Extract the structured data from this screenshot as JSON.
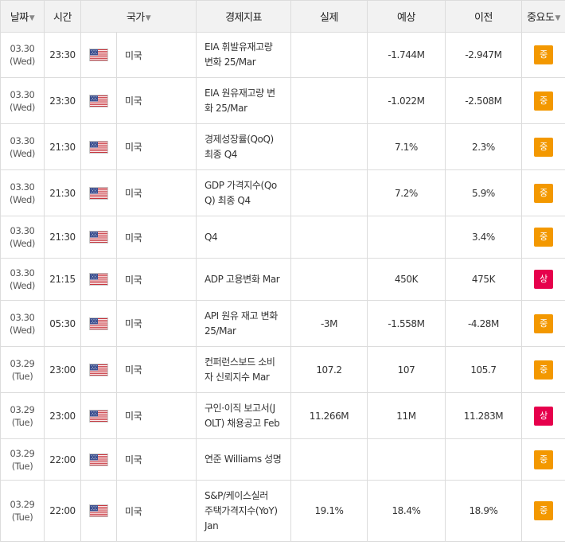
{
  "colors": {
    "header_bg": "#f2f2f2",
    "border": "#dcdcdc",
    "importance_medium": "#f39800",
    "importance_high": "#e6004c"
  },
  "header": {
    "date": "날짜",
    "time": "시간",
    "country": "국가",
    "event": "경제지표",
    "actual": "실제",
    "forecast": "예상",
    "previous": "이전",
    "importance": "중요도",
    "sort_arrow": "▼"
  },
  "rows": [
    {
      "date": "03.30",
      "day": "(Wed)",
      "time": "23:30",
      "flag": "us-flag-icon",
      "country": "미국",
      "event_line1": "EIA 휘발유재고량",
      "event_line2": "변화 25/Mar",
      "event_line3": "",
      "actual": "",
      "forecast": "-1.744M",
      "previous": "-2.947M",
      "importance": "중",
      "level": "medium"
    },
    {
      "date": "03.30",
      "day": "(Wed)",
      "time": "23:30",
      "flag": "us-flag-icon",
      "country": "미국",
      "event_line1": "EIA 원유재고량 변",
      "event_line2": "화 25/Mar",
      "event_line3": "",
      "actual": "",
      "forecast": "-1.022M",
      "previous": "-2.508M",
      "importance": "중",
      "level": "medium"
    },
    {
      "date": "03.30",
      "day": "(Wed)",
      "time": "21:30",
      "flag": "us-flag-icon",
      "country": "미국",
      "event_line1": "경제성장률(QoQ)",
      "event_line2": "최종 Q4",
      "event_line3": "",
      "actual": "",
      "forecast": "7.1%",
      "previous": "2.3%",
      "importance": "중",
      "level": "medium"
    },
    {
      "date": "03.30",
      "day": "(Wed)",
      "time": "21:30",
      "flag": "us-flag-icon",
      "country": "미국",
      "event_line1": "GDP 가격지수(Qo",
      "event_line2": "Q) 최종 Q4",
      "event_line3": "",
      "actual": "",
      "forecast": "7.2%",
      "previous": "5.9%",
      "importance": "중",
      "level": "medium"
    },
    {
      "date": "03.30",
      "day": "(Wed)",
      "time": "21:30",
      "flag": "us-flag-icon",
      "country": "미국",
      "event_line1": "Q4",
      "event_line2": "",
      "event_line3": "",
      "actual": "",
      "forecast": "",
      "previous": "3.4%",
      "importance": "중",
      "level": "medium"
    },
    {
      "date": "03.30",
      "day": "(Wed)",
      "time": "21:15",
      "flag": "us-flag-icon",
      "country": "미국",
      "event_line1": "ADP 고용변화 Mar",
      "event_line2": "",
      "event_line3": "",
      "actual": "",
      "forecast": "450K",
      "previous": "475K",
      "importance": "상",
      "level": "high"
    },
    {
      "date": "03.30",
      "day": "(Wed)",
      "time": "05:30",
      "flag": "us-flag-icon",
      "country": "미국",
      "event_line1": "API 원유 재고 변화",
      "event_line2": "25/Mar",
      "event_line3": "",
      "actual": "-3M",
      "forecast": "-1.558M",
      "previous": "-4.28M",
      "importance": "중",
      "level": "medium"
    },
    {
      "date": "03.29",
      "day": "(Tue)",
      "time": "23:00",
      "flag": "us-flag-icon",
      "country": "미국",
      "event_line1": "컨퍼런스보드 소비",
      "event_line2": "자 신뢰지수 Mar",
      "event_line3": "",
      "actual": "107.2",
      "forecast": "107",
      "previous": "105.7",
      "importance": "중",
      "level": "medium"
    },
    {
      "date": "03.29",
      "day": "(Tue)",
      "time": "23:00",
      "flag": "us-flag-icon",
      "country": "미국",
      "event_line1": "구인·이직 보고서(J",
      "event_line2": "OLT) 채용공고 Feb",
      "event_line3": "",
      "actual": "11.266M",
      "forecast": "11M",
      "previous": "11.283M",
      "importance": "상",
      "level": "high"
    },
    {
      "date": "03.29",
      "day": "(Tue)",
      "time": "22:00",
      "flag": "us-flag-icon",
      "country": "미국",
      "event_line1": "연준 Williams 성명",
      "event_line2": "",
      "event_line3": "",
      "actual": "",
      "forecast": "",
      "previous": "",
      "importance": "중",
      "level": "medium"
    },
    {
      "date": "03.29",
      "day": "(Tue)",
      "time": "22:00",
      "flag": "us-flag-icon",
      "country": "미국",
      "event_line1": "S&P/케이스실러",
      "event_line2": "주택가격지수(YoY)",
      "event_line3": "Jan",
      "actual": "19.1%",
      "forecast": "18.4%",
      "previous": "18.9%",
      "importance": "중",
      "level": "medium"
    }
  ]
}
